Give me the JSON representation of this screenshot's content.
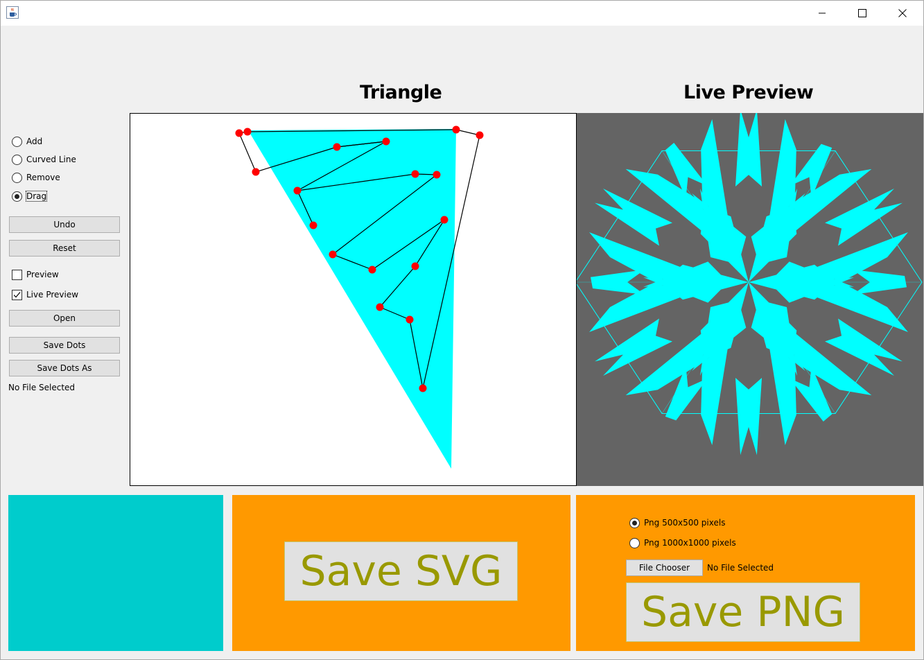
{
  "window": {
    "minimize_glyph": "—",
    "maximize_glyph": "☐",
    "close_glyph": "✕",
    "icon": "java-cup-icon"
  },
  "headings": {
    "triangle": "Triangle",
    "live_preview": "Live Preview"
  },
  "tools": {
    "modes": [
      {
        "label": "Add",
        "selected": false
      },
      {
        "label": "Curved Line",
        "selected": false
      },
      {
        "label": "Remove",
        "selected": false
      },
      {
        "label": "Drag",
        "selected": true
      }
    ],
    "undo": "Undo",
    "reset": "Reset",
    "preview": {
      "label": "Preview",
      "checked": false
    },
    "live_preview": {
      "label": "Live Preview",
      "checked": true
    },
    "open": "Open",
    "save_dots": "Save Dots",
    "save_dots_as": "Save Dots As",
    "file_status": "No File Selected"
  },
  "colors": {
    "fill": "#00ffff",
    "dot": "#ff0000",
    "preview_bg": "#646464",
    "color_swatch": "#00cccc",
    "panel_orange": "#ff9900",
    "big_button_text": "#999900"
  },
  "svg_panel": {
    "button": "Save SVG"
  },
  "png_panel": {
    "options": [
      {
        "label": "Png 500x500 pixels",
        "selected": true
      },
      {
        "label": "Png 1000x1000 pixels",
        "selected": false
      }
    ],
    "file_chooser": "File Chooser",
    "file_status": "No File Selected",
    "button": "Save PNG"
  }
}
